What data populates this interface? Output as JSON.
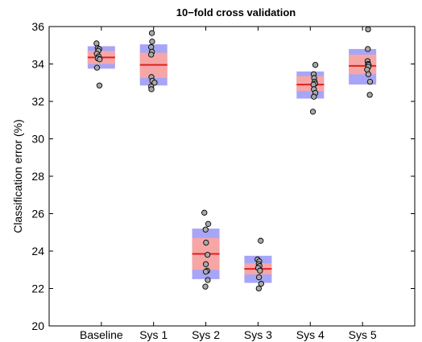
{
  "chart_data": {
    "type": "boxplot-scatter",
    "title": "10−fold cross validation",
    "xlabel": "",
    "ylabel": "Classification error (%)",
    "ylim": [
      20,
      36
    ],
    "yticks": [
      20,
      22,
      24,
      26,
      28,
      30,
      32,
      34,
      36
    ],
    "grid": false,
    "categories": [
      "Baseline",
      "Sys 1",
      "Sys 2",
      "Sys 3",
      "Sys 4",
      "Sys 5"
    ],
    "series": [
      {
        "category": "Baseline",
        "mean": 34.35,
        "ci": [
          34.0,
          34.7
        ],
        "sd": [
          33.75,
          34.95
        ],
        "points": [
          {
            "offset": 0.1,
            "value": 35.1
          },
          {
            "offset": 0.2,
            "value": 34.85
          },
          {
            "offset": 0.32,
            "value": 34.8
          },
          {
            "offset": 0.25,
            "value": 34.7
          },
          {
            "offset": 0.12,
            "value": 34.55
          },
          {
            "offset": 0.28,
            "value": 34.4
          },
          {
            "offset": 0.2,
            "value": 34.3
          },
          {
            "offset": 0.36,
            "value": 34.25
          },
          {
            "offset": 0.14,
            "value": 33.8
          },
          {
            "offset": 0.34,
            "value": 32.85
          }
        ]
      },
      {
        "category": "Sys 1",
        "mean": 33.95,
        "ci": [
          33.25,
          34.6
        ],
        "sd": [
          32.85,
          35.05
        ],
        "points": [
          {
            "offset": 0.36,
            "value": 35.65
          },
          {
            "offset": 0.38,
            "value": 35.2
          },
          {
            "offset": 0.3,
            "value": 34.9
          },
          {
            "offset": 0.36,
            "value": 34.65
          },
          {
            "offset": 0.3,
            "value": 34.5
          },
          {
            "offset": 0.32,
            "value": 33.3
          },
          {
            "offset": 0.4,
            "value": 33.1
          },
          {
            "offset": 0.58,
            "value": 33.0
          },
          {
            "offset": 0.3,
            "value": 32.8
          },
          {
            "offset": 0.32,
            "value": 32.65
          }
        ]
      },
      {
        "category": "Sys 2",
        "mean": 23.85,
        "ci": [
          23.0,
          24.7
        ],
        "sd": [
          22.5,
          25.2
        ],
        "points": [
          {
            "offset": 0.38,
            "value": 26.05
          },
          {
            "offset": 0.7,
            "value": 25.45
          },
          {
            "offset": 0.48,
            "value": 25.15
          },
          {
            "offset": 0.52,
            "value": 24.45
          },
          {
            "offset": 0.64,
            "value": 23.8
          },
          {
            "offset": 0.5,
            "value": 23.3
          },
          {
            "offset": 0.62,
            "value": 22.95
          },
          {
            "offset": 0.5,
            "value": 22.9
          },
          {
            "offset": 0.66,
            "value": 22.45
          },
          {
            "offset": 0.46,
            "value": 22.1
          }
        ]
      },
      {
        "category": "Sys 3",
        "mean": 23.05,
        "ci": [
          22.75,
          23.35
        ],
        "sd": [
          22.3,
          23.75
        ],
        "points": [
          {
            "offset": 0.72,
            "value": 24.55
          },
          {
            "offset": 0.46,
            "value": 23.55
          },
          {
            "offset": 0.6,
            "value": 23.45
          },
          {
            "offset": 0.56,
            "value": 23.3
          },
          {
            "offset": 0.62,
            "value": 23.2
          },
          {
            "offset": 0.5,
            "value": 23.1
          },
          {
            "offset": 0.66,
            "value": 22.95
          },
          {
            "offset": 0.58,
            "value": 22.6
          },
          {
            "offset": 0.76,
            "value": 22.25
          },
          {
            "offset": 0.56,
            "value": 22.0
          }
        ]
      },
      {
        "category": "Sys 4",
        "mean": 32.9,
        "ci": [
          32.55,
          33.35
        ],
        "sd": [
          32.15,
          33.6
        ],
        "points": [
          {
            "offset": 0.92,
            "value": 33.95
          },
          {
            "offset": 0.78,
            "value": 33.45
          },
          {
            "offset": 0.82,
            "value": 33.25
          },
          {
            "offset": 0.86,
            "value": 33.05
          },
          {
            "offset": 0.9,
            "value": 32.95
          },
          {
            "offset": 0.76,
            "value": 32.9
          },
          {
            "offset": 0.8,
            "value": 32.65
          },
          {
            "offset": 0.92,
            "value": 32.45
          },
          {
            "offset": 0.8,
            "value": 32.25
          },
          {
            "offset": 0.72,
            "value": 31.45
          }
        ]
      },
      {
        "category": "Sys 5",
        "mean": 33.9,
        "ci": [
          33.45,
          34.5
        ],
        "sd": [
          32.9,
          34.8
        ],
        "points": [
          {
            "offset": 0.96,
            "value": 35.85
          },
          {
            "offset": 0.94,
            "value": 34.8
          },
          {
            "offset": 0.92,
            "value": 34.15
          },
          {
            "offset": 0.96,
            "value": 34.0
          },
          {
            "offset": 1.0,
            "value": 33.95
          },
          {
            "offset": 0.98,
            "value": 33.85
          },
          {
            "offset": 0.88,
            "value": 33.7
          },
          {
            "offset": 0.98,
            "value": 33.45
          },
          {
            "offset": 1.12,
            "value": 33.05
          },
          {
            "offset": 1.1,
            "value": 32.35
          }
        ]
      }
    ],
    "colors": {
      "sd_band": "#a7a5f7",
      "ci_band": "#f7a6a6",
      "mean_line": "#e02020",
      "point_fill": "#a9a9a9",
      "point_stroke": "#000000",
      "axis": "#000000"
    }
  }
}
